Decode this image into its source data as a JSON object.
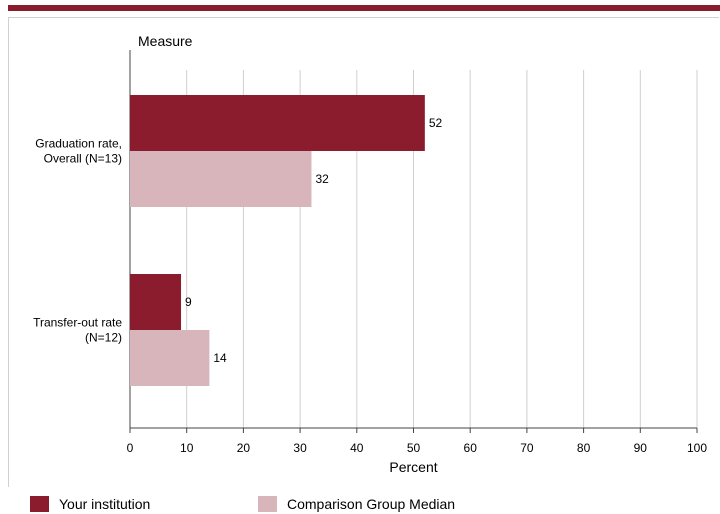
{
  "chart_data": {
    "type": "bar",
    "orientation": "horizontal",
    "title": "",
    "category_axis_title": "Measure",
    "xlabel": "Percent",
    "xlim": [
      0,
      100
    ],
    "ticks": [
      0,
      10,
      20,
      30,
      40,
      50,
      60,
      70,
      80,
      90,
      100
    ],
    "grid": true,
    "categories": [
      [
        "Graduation rate,",
        "Overall (N=13)"
      ],
      [
        "Transfer-out rate",
        "(N=12)"
      ]
    ],
    "series": [
      {
        "name": "Your institution",
        "color": "#8b1c2d",
        "values": [
          52,
          9
        ]
      },
      {
        "name": "Comparison Group Median",
        "color": "#d8b4bb",
        "values": [
          32,
          14
        ]
      }
    ],
    "legend_position": "bottom"
  }
}
